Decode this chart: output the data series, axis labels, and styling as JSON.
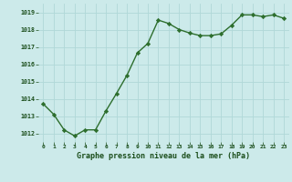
{
  "x": [
    0,
    1,
    2,
    3,
    4,
    5,
    6,
    7,
    8,
    9,
    10,
    11,
    12,
    13,
    14,
    15,
    16,
    17,
    18,
    19,
    20,
    21,
    22,
    23
  ],
  "y": [
    1013.7,
    1013.1,
    1012.2,
    1011.85,
    1012.2,
    1012.2,
    1013.3,
    1014.3,
    1015.35,
    1016.65,
    1017.2,
    1018.55,
    1018.35,
    1018.0,
    1017.8,
    1017.65,
    1017.65,
    1017.75,
    1018.25,
    1018.85,
    1018.85,
    1018.75,
    1018.85,
    1018.65
  ],
  "line_color": "#2d6e2d",
  "marker": "D",
  "marker_size": 2.2,
  "line_width": 1.0,
  "bg_color": "#cceaea",
  "grid_color": "#b0d8d8",
  "xlabel": "Graphe pression niveau de la mer (hPa)",
  "xlabel_color": "#1a4d1a",
  "tick_color": "#1a4d1a",
  "ylim_min": 1011.5,
  "ylim_max": 1019.5,
  "fig_width": 3.2,
  "fig_height": 2.0,
  "dpi": 100
}
